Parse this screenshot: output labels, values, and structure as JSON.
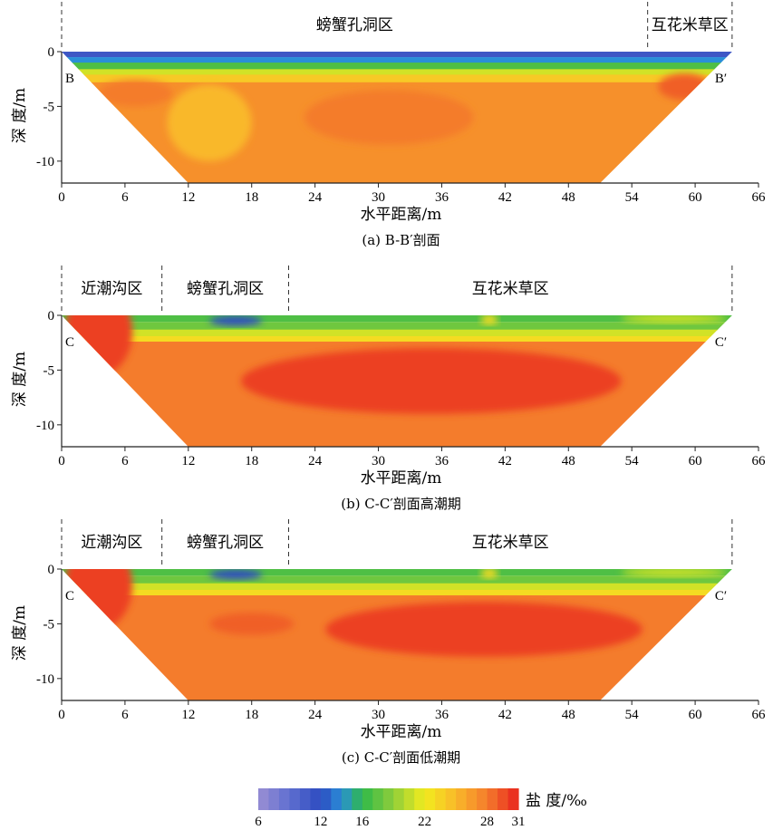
{
  "chart_data": [
    {
      "type": "heatmap",
      "panel_id": "a",
      "caption": "(a) B-B′剖面",
      "xlabel": "水平距离/m",
      "ylabel": "深 度/m",
      "xlim": [
        0,
        66
      ],
      "ylim": [
        -12,
        0
      ],
      "xticks": [
        "0",
        "6",
        "12",
        "18",
        "24",
        "30",
        "36",
        "42",
        "48",
        "54",
        "60",
        "66"
      ],
      "yticks": [
        "0",
        "-5",
        "-10"
      ],
      "start_label": "B",
      "end_label": "B′",
      "section_extent": {
        "x_start": 0,
        "x_end": 63.5,
        "bottom_x_start": 12,
        "bottom_x_end": 51,
        "depth": -12
      },
      "zones": [
        {
          "name": "螃蟹孔洞区",
          "x_start": 0,
          "x_end": 55.5
        },
        {
          "name": "互花米草区",
          "x_start": 55.5,
          "x_end": 63.5
        }
      ],
      "bands": [
        {
          "depth_top": 0,
          "depth_bottom": -0.5,
          "salinity": 11
        },
        {
          "depth_top": -0.5,
          "depth_bottom": -1,
          "salinity": 14
        },
        {
          "depth_top": -1,
          "depth_bottom": -1.6,
          "salinity": 17
        },
        {
          "depth_top": -1.6,
          "depth_bottom": -2.1,
          "salinity": 21
        },
        {
          "depth_top": -2.1,
          "depth_bottom": -2.8,
          "salinity": 24
        },
        {
          "depth_top": -2.8,
          "depth_bottom": -12,
          "salinity": 27
        }
      ],
      "anomalies": [
        {
          "x": 7,
          "depth": -3.8,
          "rx": 3.5,
          "ry": 1.2,
          "salinity": 28
        },
        {
          "x": 31,
          "depth": -6,
          "rx": 8,
          "ry": 2.5,
          "salinity": 28
        },
        {
          "x": 14,
          "depth": -6.5,
          "rx": 4,
          "ry": 3.5,
          "salinity": 25
        },
        {
          "x": 59,
          "depth": -3.2,
          "rx": 2.5,
          "ry": 1.2,
          "salinity": 29
        }
      ]
    },
    {
      "type": "heatmap",
      "panel_id": "b",
      "caption": "(b) C-C′剖面高潮期",
      "xlabel": "水平距离/m",
      "ylabel": "深 度/m",
      "xlim": [
        0,
        66
      ],
      "ylim": [
        -12,
        0
      ],
      "xticks": [
        "0",
        "6",
        "12",
        "18",
        "24",
        "30",
        "36",
        "42",
        "48",
        "54",
        "60",
        "66"
      ],
      "yticks": [
        "0",
        "-5",
        "-10"
      ],
      "start_label": "C",
      "end_label": "C′",
      "section_extent": {
        "x_start": 0,
        "x_end": 63.5,
        "bottom_x_start": 12,
        "bottom_x_end": 51,
        "depth": -12
      },
      "zones": [
        {
          "name": "近潮沟区",
          "x_start": 0,
          "x_end": 9.5
        },
        {
          "name": "螃蟹孔洞区",
          "x_start": 9.5,
          "x_end": 21.5
        },
        {
          "name": "互花米草区",
          "x_start": 21.5,
          "x_end": 63.5
        }
      ],
      "bands": [
        {
          "depth_top": 0,
          "depth_bottom": -0.6,
          "salinity": 17
        },
        {
          "depth_top": -0.6,
          "depth_bottom": -1.3,
          "salinity": 18
        },
        {
          "depth_top": -1.3,
          "depth_bottom": -1.9,
          "salinity": 21
        },
        {
          "depth_top": -1.9,
          "depth_bottom": -2.4,
          "salinity": 23
        },
        {
          "depth_top": -2.4,
          "depth_bottom": -12,
          "salinity": 28
        }
      ],
      "anomalies": [
        {
          "x": 3.5,
          "depth": -1.5,
          "rx": 3.2,
          "ry": 4,
          "salinity": 30
        },
        {
          "x": 16.5,
          "depth": -0.5,
          "rx": 2.5,
          "ry": 0.45,
          "salinity": 12
        },
        {
          "x": 35,
          "depth": -6,
          "rx": 18,
          "ry": 3,
          "salinity": 30
        },
        {
          "x": 40.5,
          "depth": -0.4,
          "rx": 0.8,
          "ry": 0.45,
          "salinity": 23
        },
        {
          "x": 58,
          "depth": -0.3,
          "rx": 5,
          "ry": 0.4,
          "salinity": 21
        }
      ]
    },
    {
      "type": "heatmap",
      "panel_id": "c",
      "caption": "(c) C-C′剖面低潮期",
      "xlabel": "水平距离/m",
      "ylabel": "深 度/m",
      "xlim": [
        0,
        66
      ],
      "ylim": [
        -12,
        0
      ],
      "xticks": [
        "0",
        "6",
        "12",
        "18",
        "24",
        "30",
        "36",
        "42",
        "48",
        "54",
        "60",
        "66"
      ],
      "yticks": [
        "0",
        "-5",
        "-10"
      ],
      "start_label": "C",
      "end_label": "C′",
      "section_extent": {
        "x_start": 0,
        "x_end": 63.5,
        "bottom_x_start": 12,
        "bottom_x_end": 51,
        "depth": -12
      },
      "zones": [
        {
          "name": "近潮沟区",
          "x_start": 0,
          "x_end": 9.5
        },
        {
          "name": "螃蟹孔洞区",
          "x_start": 9.5,
          "x_end": 21.5
        },
        {
          "name": "互花米草区",
          "x_start": 21.5,
          "x_end": 63.5
        }
      ],
      "bands": [
        {
          "depth_top": 0,
          "depth_bottom": -0.6,
          "salinity": 17
        },
        {
          "depth_top": -0.6,
          "depth_bottom": -1.3,
          "salinity": 18
        },
        {
          "depth_top": -1.3,
          "depth_bottom": -1.9,
          "salinity": 21
        },
        {
          "depth_top": -1.9,
          "depth_bottom": -2.4,
          "salinity": 23
        },
        {
          "depth_top": -2.4,
          "depth_bottom": -12,
          "salinity": 28
        }
      ],
      "anomalies": [
        {
          "x": 3.5,
          "depth": -1.5,
          "rx": 3.2,
          "ry": 4,
          "salinity": 30
        },
        {
          "x": 16.5,
          "depth": -0.5,
          "rx": 2.5,
          "ry": 0.45,
          "salinity": 12
        },
        {
          "x": 18,
          "depth": -5,
          "rx": 4,
          "ry": 1,
          "salinity": 29
        },
        {
          "x": 40,
          "depth": -5.5,
          "rx": 15,
          "ry": 2.5,
          "salinity": 30
        },
        {
          "x": 40.5,
          "depth": -0.4,
          "rx": 0.8,
          "ry": 0.45,
          "salinity": 23
        },
        {
          "x": 58,
          "depth": -0.3,
          "rx": 5,
          "ry": 0.4,
          "salinity": 21
        }
      ]
    }
  ],
  "colorbar": {
    "label": "盐 度/‰",
    "min": 6,
    "max": 31,
    "tick_labels": [
      "6",
      "12",
      "16",
      "22",
      "28",
      "31"
    ],
    "tick_values": [
      6,
      12,
      16,
      22,
      28,
      31
    ],
    "stops": [
      {
        "value": 6,
        "color": "#9b8fd3"
      },
      {
        "value": 9,
        "color": "#5f6fd0"
      },
      {
        "value": 12,
        "color": "#2d4bc0"
      },
      {
        "value": 14,
        "color": "#2a8fd8"
      },
      {
        "value": 16,
        "color": "#2fb84a"
      },
      {
        "value": 19,
        "color": "#8fce3a"
      },
      {
        "value": 22,
        "color": "#f2ec1e"
      },
      {
        "value": 25,
        "color": "#f9b82a"
      },
      {
        "value": 28,
        "color": "#f47c2c"
      },
      {
        "value": 31,
        "color": "#e8231d"
      }
    ]
  }
}
